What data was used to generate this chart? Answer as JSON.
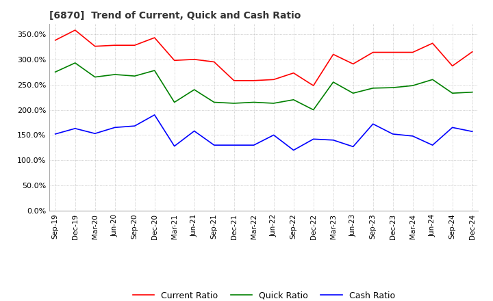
{
  "title": "[6870]  Trend of Current, Quick and Cash Ratio",
  "x_labels": [
    "Sep-19",
    "Dec-19",
    "Mar-20",
    "Jun-20",
    "Sep-20",
    "Dec-20",
    "Mar-21",
    "Jun-21",
    "Sep-21",
    "Dec-21",
    "Mar-22",
    "Jun-22",
    "Sep-22",
    "Dec-22",
    "Mar-23",
    "Jun-23",
    "Sep-23",
    "Dec-23",
    "Mar-24",
    "Jun-24",
    "Sep-24",
    "Dec-24"
  ],
  "current_ratio": [
    338,
    358,
    326,
    328,
    328,
    343,
    298,
    300,
    295,
    258,
    258,
    260,
    273,
    248,
    310,
    291,
    314,
    314,
    314,
    332,
    287,
    315
  ],
  "quick_ratio": [
    275,
    293,
    265,
    270,
    267,
    278,
    215,
    240,
    215,
    213,
    215,
    213,
    220,
    200,
    255,
    233,
    243,
    244,
    248,
    260,
    233,
    235
  ],
  "cash_ratio": [
    152,
    163,
    153,
    165,
    168,
    190,
    128,
    158,
    130,
    130,
    130,
    150,
    120,
    142,
    140,
    127,
    172,
    152,
    148,
    130,
    165,
    157
  ],
  "current_color": "#ff0000",
  "quick_color": "#008000",
  "cash_color": "#0000ff",
  "ylim": [
    0,
    370
  ],
  "yticks": [
    0,
    50,
    100,
    150,
    200,
    250,
    300,
    350
  ],
  "background_color": "#ffffff",
  "grid_color": "#aaaaaa"
}
